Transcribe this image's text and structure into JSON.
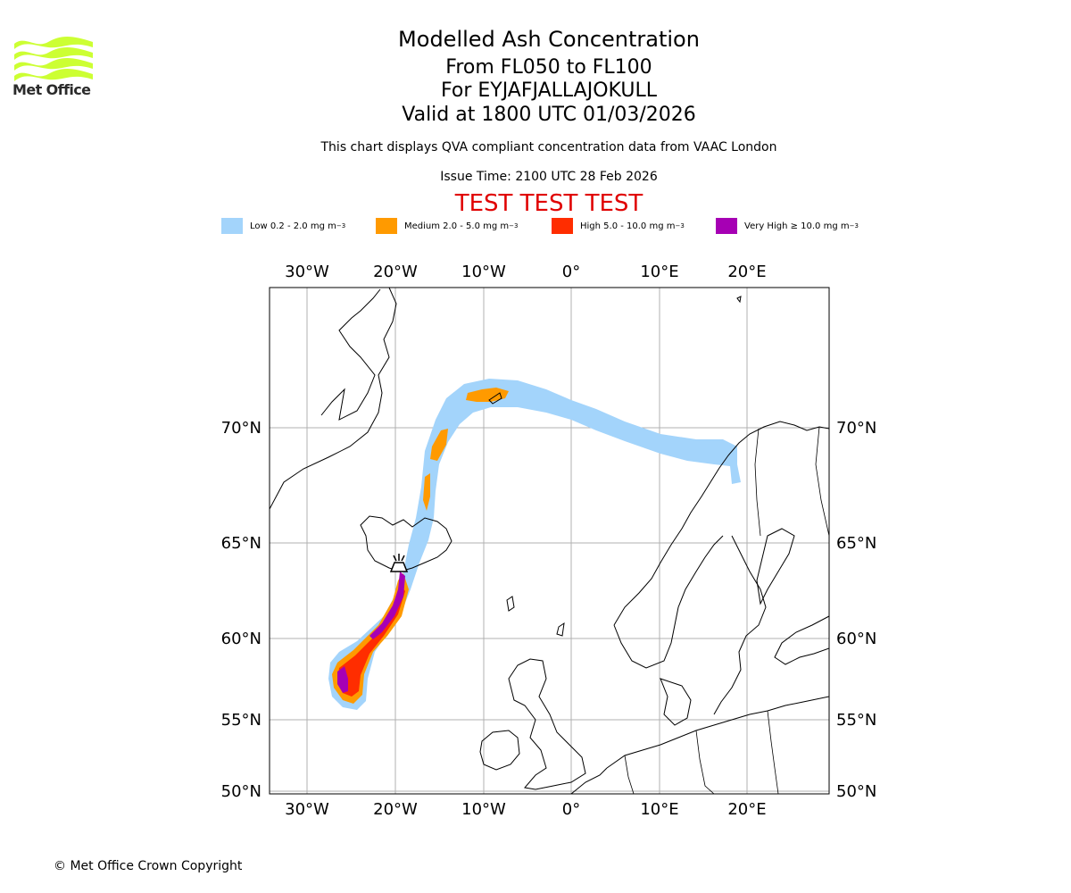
{
  "header": {
    "logo_text": "Met Office",
    "title": "Modelled Ash Concentration",
    "flight_levels": "From FL050 to FL100",
    "volcano": "For EYJAFJALLAJOKULL",
    "valid_time": "Valid at 1800 UTC 01/03/2026",
    "subtitle": "This chart displays QVA compliant concentration data from VAAC London",
    "issue_time": "Issue Time: 2100 UTC 28 Feb 2026",
    "test_banner": "TEST TEST TEST"
  },
  "legend": [
    {
      "label": "Low 0.2 - 2.0 mg m",
      "sup": "−3",
      "color": "#a3d4fb"
    },
    {
      "label": "Medium 2.0 - 5.0 mg m",
      "sup": "−3",
      "color": "#ff9a00"
    },
    {
      "label": "High 5.0 - 10.0 mg m",
      "sup": "−3",
      "color": "#ff2d00"
    },
    {
      "label": "Very High  ≥  10.0 mg m",
      "sup": "−3",
      "color": "#a600b4"
    }
  ],
  "map": {
    "lon_labels": [
      "30°W",
      "20°W",
      "10°W",
      "0°",
      "10°E",
      "20°E"
    ],
    "lat_labels": [
      "70°N",
      "65°N",
      "60°N",
      "55°N",
      "50°N"
    ],
    "volcano_icon": "volcano-icon"
  },
  "colors": {
    "test_banner": "#e00000",
    "logo": "#ccff33",
    "gridline": "#b0b0b0"
  },
  "footer": {
    "copyright": "© Met Office Crown Copyright"
  }
}
